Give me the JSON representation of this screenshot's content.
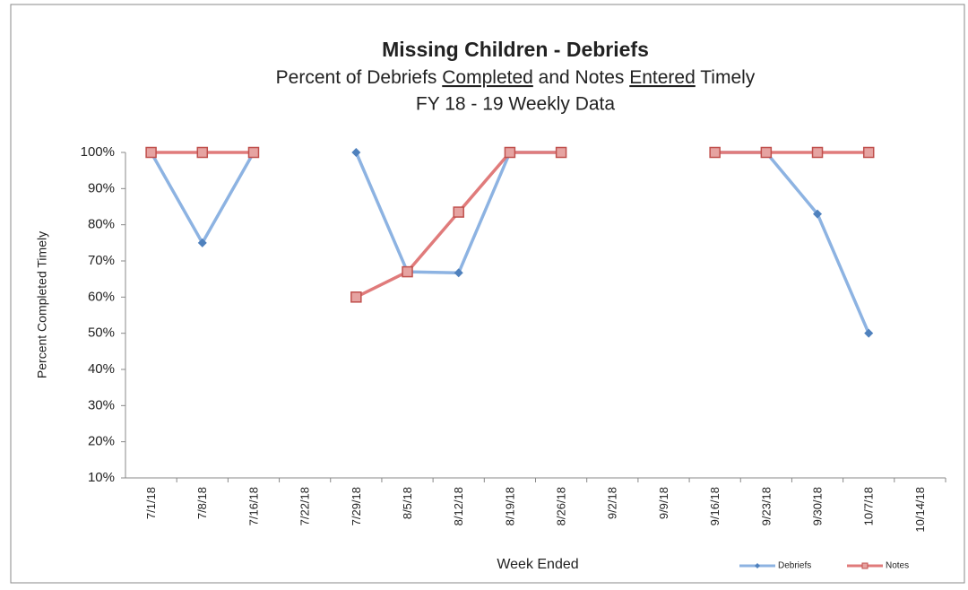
{
  "chart_data": {
    "type": "line",
    "title": "Missing Children  - Debriefs",
    "subtitle": [
      {
        "text": "Percent of Debriefs "
      },
      {
        "text": "Completed",
        "underline": true
      },
      {
        "text": " and Notes "
      },
      {
        "text": "Entered",
        "underline": true
      },
      {
        "text": " Timely"
      }
    ],
    "subtitle2": "FY 18 - 19  Weekly Data",
    "x_label": "Week Ended",
    "y_label": "Percent Completed Timely",
    "categories": [
      "7/1/18",
      "7/8/18",
      "7/16/18",
      "7/22/18",
      "7/29/18",
      "8/5/18",
      "8/12/18",
      "8/19/18",
      "8/26/18",
      "9/2/18",
      "9/9/18",
      "9/16/18",
      "9/23/18",
      "9/30/18",
      "10/7/18",
      "10/14/18"
    ],
    "series": [
      {
        "name": "Debriefs",
        "color": "#8db3e2",
        "marker_color": "#4f81bd",
        "marker": "diamond",
        "values": [
          100,
          75,
          100,
          null,
          100,
          67,
          66.7,
          100,
          100,
          null,
          null,
          100,
          100,
          83,
          50,
          null
        ]
      },
      {
        "name": "Notes",
        "color": "#e07b7b",
        "marker_color": "#c0504d",
        "marker": "square",
        "values": [
          100,
          100,
          100,
          null,
          60,
          67,
          83.5,
          100,
          100,
          null,
          null,
          100,
          100,
          100,
          100,
          null
        ]
      }
    ],
    "ylim": [
      10,
      100
    ],
    "yticks": [
      {
        "value": 10,
        "label": "10%"
      },
      {
        "value": 20,
        "label": "20%"
      },
      {
        "value": 30,
        "label": "30%"
      },
      {
        "value": 40,
        "label": "40%"
      },
      {
        "value": 50,
        "label": "50%"
      },
      {
        "value": 60,
        "label": "60%"
      },
      {
        "value": 70,
        "label": "70%"
      },
      {
        "value": 80,
        "label": "80%"
      },
      {
        "value": 90,
        "label": "90%"
      },
      {
        "value": 100,
        "label": "100%"
      }
    ],
    "grid": false,
    "legend": "bottom-right"
  }
}
